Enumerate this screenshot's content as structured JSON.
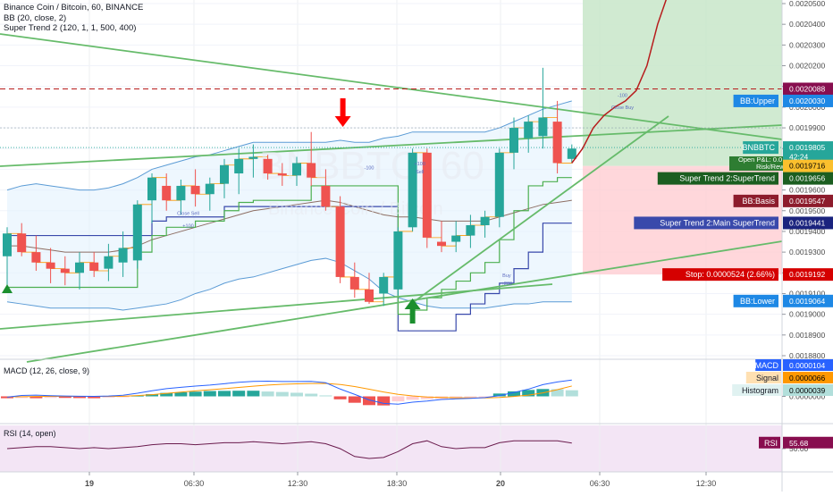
{
  "header": {
    "title": "Binance Coin / Bitcoin, 60, BINANCE",
    "bb": "BB (20, close, 2)",
    "supertrend": "Super Trend 2 (120, 1, 1, 500, 400)"
  },
  "watermark": {
    "symbol": "BNBBTC, 60",
    "name": "Binance Coin / Bitcoin"
  },
  "colors": {
    "up": "#26a69a",
    "down": "#ef5350",
    "bb": "#5b9bd5",
    "basis": "#8d6e63",
    "st_fast": "#4caf50",
    "st_slow": "#3949ab",
    "trend_line": "#66bb6a",
    "target": "#b71c1c",
    "macd": "#2962ff",
    "signal": "#ff9800",
    "rsi": "#7e57c2"
  },
  "price_axis": {
    "ticks": [
      "0.0020500",
      "0.0020400",
      "0.0020300",
      "0.0020200",
      "0.0020100",
      "0.0020000",
      "0.0019900",
      "0.0019800",
      "0.0019700",
      "0.0019600",
      "0.0019500",
      "0.0019400",
      "0.0019300",
      "0.0019200",
      "0.0019100",
      "0.0019000",
      "0.0018900",
      "0.0018800"
    ]
  },
  "macd_axis": {
    "ticks": [
      "0.0000000"
    ]
  },
  "rsi_axis": {
    "ticks": [
      "50.00"
    ]
  },
  "price_labels": [
    {
      "text": "0.0020088",
      "bg": "#880e4f",
      "fg": "#ffffff",
      "price": 0.0020088
    },
    {
      "text": "0.0020030",
      "bg": "#1e88e5",
      "fg": "#ffffff",
      "price": 0.002003
    },
    {
      "text": "0.0019805",
      "bg": "#26a69a",
      "fg": "#ffffff",
      "price": 0.0019805
    },
    {
      "text": "42:24",
      "bg": "#26a69a",
      "fg": "#ffffff",
      "price": 0.001976
    },
    {
      "text": "0.0019716",
      "bg": "#fbc02d",
      "fg": "#000000",
      "price": 0.0019716
    },
    {
      "text": "0.0019656",
      "bg": "#1b5e20",
      "fg": "#ffffff",
      "price": 0.0019656
    },
    {
      "text": "0.0019547",
      "bg": "#8d1c2c",
      "fg": "#ffffff",
      "price": 0.0019547
    },
    {
      "text": "0.0019441",
      "bg": "#1a237e",
      "fg": "#ffffff",
      "price": 0.0019441
    },
    {
      "text": "0.0019192",
      "bg": "#d50000",
      "fg": "#ffffff",
      "price": 0.0019192
    },
    {
      "text": "0.0019064",
      "bg": "#1e88e5",
      "fg": "#ffffff",
      "price": 0.0019064
    }
  ],
  "line_tags": [
    {
      "text": "BB:Upper",
      "bg": "#1e88e5",
      "price": 0.002003
    },
    {
      "text": "BNBBTC",
      "bg": "#26a69a",
      "price": 0.0019805
    },
    {
      "text": "Super Trend 2:SuperTrend",
      "bg": "#1b5e20",
      "price": 0.0019656
    },
    {
      "text": "BB:Basis",
      "bg": "#8d1c2c",
      "price": 0.0019547
    },
    {
      "text": "Super Trend 2:Main SuperTrend",
      "bg": "#3949ab",
      "price": 0.0019441
    },
    {
      "text": "Stop: 0.0000524 (2.66%)",
      "bg": "#d50000",
      "price": 0.0019192
    },
    {
      "text": "BB:Lower",
      "bg": "#1e88e5",
      "price": 0.0019064
    }
  ],
  "position_box": {
    "open_pnl": "Open P&L: 0.0",
    "risk_reward": "Risk/Rew"
  },
  "macd_labels": [
    {
      "text": "MACD",
      "value": "0.0000104",
      "tag_bg": "#2962ff",
      "val_bg": "#2962ff",
      "val_fg": "#ffffff"
    },
    {
      "text": "Signal",
      "value": "0.0000066",
      "tag_bg": "#ffe0b2",
      "val_bg": "#ff9800",
      "val_fg": "#000000"
    },
    {
      "text": "Histogram",
      "value": "0.0000039",
      "tag_bg": "#e0f2f1",
      "val_bg": "#b2dfdb",
      "val_fg": "#000000"
    }
  ],
  "macd_title": "MACD (12, 26, close, 9)",
  "rsi_title": "RSI (14, open)",
  "rsi_label": {
    "text": "RSI",
    "value": "55.68"
  },
  "time_axis": {
    "labels": [
      {
        "text": "19",
        "bold": true
      },
      {
        "text": "06:30",
        "bold": false
      },
      {
        "text": "12:30",
        "bold": false
      },
      {
        "text": "18:30",
        "bold": false
      },
      {
        "text": "20",
        "bold": true
      },
      {
        "text": "06:30",
        "bold": false
      },
      {
        "text": "12:30",
        "bold": false
      }
    ]
  },
  "annotations": [
    {
      "text": "-100",
      "x": 25,
      "y": 0.00197
    },
    {
      "text": "Close Sell",
      "x": 12.5,
      "y": 0.001948
    },
    {
      "text": "+100",
      "x": 12.5,
      "y": 0.001942
    },
    {
      "text": "+100",
      "x": 28.5,
      "y": 0.001972
    },
    {
      "text": "Sell",
      "x": 28.5,
      "y": 0.001968
    },
    {
      "text": "Buy",
      "x": 34.5,
      "y": 0.001918
    },
    {
      "text": "+200",
      "x": 34.5,
      "y": 0.001914
    },
    {
      "text": "-100",
      "x": 42.5,
      "y": 0.002005
    },
    {
      "text": "Close Buy",
      "x": 42.5,
      "y": 0.001999
    }
  ],
  "chart_data": {
    "type": "candlestick",
    "symbol": "BNBBTC",
    "interval": "60",
    "exchange": "BINANCE",
    "ylim": [
      0.00187,
      0.002052
    ],
    "candles": [
      {
        "o": 0.001928,
        "h": 0.001942,
        "l": 0.001913,
        "c": 0.001939
      },
      {
        "o": 0.001939,
        "h": 0.001944,
        "l": 0.001928,
        "c": 0.00193
      },
      {
        "o": 0.00193,
        "h": 0.001938,
        "l": 0.001921,
        "c": 0.001925
      },
      {
        "o": 0.001925,
        "h": 0.001932,
        "l": 0.001915,
        "c": 0.001922
      },
      {
        "o": 0.001922,
        "h": 0.001928,
        "l": 0.001914,
        "c": 0.00192
      },
      {
        "o": 0.00192,
        "h": 0.00193,
        "l": 0.001912,
        "c": 0.001925
      },
      {
        "o": 0.001925,
        "h": 0.00193,
        "l": 0.001918,
        "c": 0.001921
      },
      {
        "o": 0.001922,
        "h": 0.001934,
        "l": 0.001916,
        "c": 0.001928
      },
      {
        "o": 0.001925,
        "h": 0.00194,
        "l": 0.001918,
        "c": 0.001932
      },
      {
        "o": 0.001926,
        "h": 0.001955,
        "l": 0.001922,
        "c": 0.001953
      },
      {
        "o": 0.001955,
        "h": 0.001968,
        "l": 0.001944,
        "c": 0.001966
      },
      {
        "o": 0.001962,
        "h": 0.001968,
        "l": 0.00195,
        "c": 0.001955
      },
      {
        "o": 0.001955,
        "h": 0.001965,
        "l": 0.001948,
        "c": 0.001962
      },
      {
        "o": 0.001962,
        "h": 0.00197,
        "l": 0.001952,
        "c": 0.001958
      },
      {
        "o": 0.001958,
        "h": 0.001966,
        "l": 0.00195,
        "c": 0.001963
      },
      {
        "o": 0.001963,
        "h": 0.001975,
        "l": 0.001956,
        "c": 0.001972
      },
      {
        "o": 0.001968,
        "h": 0.00198,
        "l": 0.001958,
        "c": 0.001975
      },
      {
        "o": 0.001975,
        "h": 0.001982,
        "l": 0.001966,
        "c": 0.001976
      },
      {
        "o": 0.001975,
        "h": 0.001977,
        "l": 0.001965,
        "c": 0.001968
      },
      {
        "o": 0.001968,
        "h": 0.001973,
        "l": 0.001962,
        "c": 0.001967
      },
      {
        "o": 0.001967,
        "h": 0.001976,
        "l": 0.001962,
        "c": 0.001973
      },
      {
        "o": 0.001973,
        "h": 0.001988,
        "l": 0.001962,
        "c": 0.001966
      },
      {
        "o": 0.001962,
        "h": 0.00197,
        "l": 0.00195,
        "c": 0.001952
      },
      {
        "o": 0.001952,
        "h": 0.001957,
        "l": 0.001915,
        "c": 0.001918
      },
      {
        "o": 0.001918,
        "h": 0.001925,
        "l": 0.001908,
        "c": 0.001912
      },
      {
        "o": 0.001912,
        "h": 0.00192,
        "l": 0.001905,
        "c": 0.001906
      },
      {
        "o": 0.00191,
        "h": 0.00192,
        "l": 0.001904,
        "c": 0.001918
      },
      {
        "o": 0.001912,
        "h": 0.001942,
        "l": 0.001909,
        "c": 0.00194
      },
      {
        "o": 0.001942,
        "h": 0.00198,
        "l": 0.00194,
        "c": 0.001978
      },
      {
        "o": 0.001978,
        "h": 0.00198,
        "l": 0.001932,
        "c": 0.001937
      },
      {
        "o": 0.001935,
        "h": 0.001945,
        "l": 0.00193,
        "c": 0.001933
      },
      {
        "o": 0.001935,
        "h": 0.001945,
        "l": 0.00193,
        "c": 0.001938
      },
      {
        "o": 0.001938,
        "h": 0.001948,
        "l": 0.001932,
        "c": 0.001943
      },
      {
        "o": 0.001943,
        "h": 0.00195,
        "l": 0.001937,
        "c": 0.001947
      },
      {
        "o": 0.001947,
        "h": 0.00198,
        "l": 0.001942,
        "c": 0.001978
      },
      {
        "o": 0.001978,
        "h": 0.001995,
        "l": 0.00197,
        "c": 0.00199
      },
      {
        "o": 0.001985,
        "h": 0.001996,
        "l": 0.001978,
        "c": 0.001993
      },
      {
        "o": 0.001986,
        "h": 0.002019,
        "l": 0.00198,
        "c": 0.001995
      },
      {
        "o": 0.001993,
        "h": 0.002003,
        "l": 0.001968,
        "c": 0.001973
      },
      {
        "o": 0.001975,
        "h": 0.001982,
        "l": 0.001973,
        "c": 0.00198
      }
    ],
    "bb_upper": [
      0.00196,
      0.001962,
      0.001963,
      0.001962,
      0.001961,
      0.00196,
      0.00196,
      0.001961,
      0.001963,
      0.001966,
      0.00197,
      0.001972,
      0.001974,
      0.001976,
      0.001977,
      0.001979,
      0.001981,
      0.001983,
      0.001983,
      0.001983,
      0.001983,
      0.001983,
      0.001983,
      0.001984,
      0.001983,
      0.001983,
      0.001985,
      0.001986,
      0.001988,
      0.001988,
      0.001988,
      0.001988,
      0.001988,
      0.001988,
      0.00199,
      0.001993,
      0.001996,
      0.001999,
      0.002001,
      0.002003
    ],
    "bb_basis": [
      0.001933,
      0.001933,
      0.001932,
      0.001931,
      0.00193,
      0.00193,
      0.00193,
      0.00193,
      0.001931,
      0.001933,
      0.001936,
      0.001938,
      0.00194,
      0.001942,
      0.001944,
      0.001946,
      0.001948,
      0.00195,
      0.001951,
      0.001952,
      0.001953,
      0.001954,
      0.001955,
      0.001954,
      0.001952,
      0.00195,
      0.001948,
      0.001947,
      0.001947,
      0.001946,
      0.001945,
      0.001945,
      0.001945,
      0.001945,
      0.001947,
      0.001949,
      0.001951,
      0.001953,
      0.001954,
      0.001955
    ],
    "bb_lower": [
      0.001906,
      0.001905,
      0.001904,
      0.001903,
      0.001903,
      0.001903,
      0.001903,
      0.001903,
      0.001902,
      0.001903,
      0.001904,
      0.001905,
      0.001907,
      0.00191,
      0.001912,
      0.001915,
      0.001917,
      0.001918,
      0.00192,
      0.001922,
      0.001924,
      0.001926,
      0.001927,
      0.001925,
      0.001921,
      0.001917,
      0.001911,
      0.001908,
      0.001906,
      0.001904,
      0.001903,
      0.001903,
      0.001903,
      0.001903,
      0.001904,
      0.001905,
      0.001905,
      0.001906,
      0.001906,
      0.001906
    ],
    "st_fast": [
      0.001913,
      0.001913,
      0.001913,
      0.001913,
      0.001913,
      0.001913,
      0.001913,
      0.001913,
      0.001913,
      0.00193,
      0.001938,
      0.001942,
      0.001942,
      0.001945,
      0.001945,
      0.00195,
      0.001954,
      0.001955,
      0.001955,
      0.001955,
      0.001955,
      0.001962,
      0.001962,
      0.001962,
      0.001962,
      0.001962,
      0.001962,
      0.0019,
      0.001902,
      0.001908,
      0.001912,
      0.001916,
      0.00192,
      0.001925,
      0.001936,
      0.00195,
      0.001962,
      0.001964,
      0.001966,
      0.001966
    ],
    "st_slow": [
      0.001938,
      0.001938,
      0.001938,
      0.001938,
      0.001938,
      0.001938,
      0.001938,
      0.001938,
      0.001938,
      0.001938,
      0.001945,
      0.001947,
      0.001947,
      0.001947,
      0.001947,
      0.001952,
      0.001952,
      0.001952,
      0.001952,
      0.001952,
      0.001952,
      0.001952,
      0.001952,
      0.001952,
      0.001952,
      0.001952,
      0.001952,
      0.001892,
      0.001892,
      0.001892,
      0.001892,
      0.0019,
      0.001905,
      0.00191,
      0.001915,
      0.001922,
      0.00193,
      0.001944,
      0.001944,
      0.001944
    ],
    "resistance": [
      0.001972,
      0.001962
    ],
    "target_path": [
      0.001973,
      0.00198,
      0.00199,
      0.001996,
      0.002,
      0.002003,
      0.002008,
      0.00202,
      0.00204,
      0.002055
    ],
    "levels": {
      "target": 0.0020088,
      "entry": 0.0019716,
      "stop": 0.0019192,
      "bb_upper": 0.002003,
      "bb_basis": 0.0019547,
      "bb_lower": 0.0019064,
      "last": 0.0019805
    },
    "macd": {
      "ylim": [
        -1.4e-05,
        1.8e-05
      ],
      "macd": [
        -5e-07,
        6e-07,
        8e-07,
        4e-07,
        2e-07,
        1e-07,
        0.0,
        2e-07,
        7e-07,
        2e-06,
        3.6e-06,
        4.9e-06,
        5.8e-06,
        6.6e-06,
        7.2e-06,
        8.1e-06,
        9e-06,
        9.6e-06,
        9.7e-06,
        9.5e-06,
        9.5e-06,
        9.6e-06,
        8.7e-06,
        4.7e-06,
        1.3e-06,
        -2.3e-06,
        -4.5e-06,
        -5e-06,
        -3.7e-06,
        -3e-06,
        -2e-06,
        -1.6e-06,
        -1.3e-06,
        -8e-07,
        4e-07,
        2.5e-06,
        4.6e-06,
        7.5e-06,
        9.2e-06,
        1.04e-05
      ],
      "signal": [
        -3e-07,
        -2e-07,
        -1e-07,
        0.0,
        0.0,
        0.0,
        0.0,
        0.0,
        1e-07,
        5e-07,
        1.1e-06,
        1.9e-06,
        2.7e-06,
        3.5e-06,
        4.2e-06,
        4.9e-06,
        5.7e-06,
        6.5e-06,
        7.2e-06,
        7.7e-06,
        8e-06,
        8.2e-06,
        8.3e-06,
        7.6e-06,
        6.3e-06,
        4.6e-06,
        2.8e-06,
        1.3e-06,
        3e-07,
        -4e-07,
        -7e-07,
        -9e-07,
        -1e-06,
        -1e-06,
        -7e-07,
        -1e-07,
        8e-07,
        2.2e-06,
        4.3e-06,
        6.6e-06
      ],
      "histogram": [
        -1.2e-06,
        -1.1e-06,
        -1.2e-06,
        -1e-06,
        -1e-06,
        -1.1e-06,
        -1.2e-06,
        -8e-07,
        -4e-07,
        5e-07,
        1.4e-06,
        2.2e-06,
        2.6e-06,
        3e-06,
        3.4e-06,
        3.5e-06,
        3.6e-06,
        3.6e-06,
        3.1e-06,
        2.8e-06,
        2.3e-06,
        1.7e-06,
        6e-07,
        -1.9e-06,
        -4.1e-06,
        -5.6e-06,
        -5.8e-06,
        -3.2e-06,
        -2.2e-06,
        -1.8e-06,
        -1.6e-06,
        -1.4e-06,
        -8e-07,
        -2e-07,
        1.8e-06,
        3.2e-06,
        4.1e-06,
        4.7e-06,
        4.6e-06,
        3.9e-06
      ]
    },
    "rsi": {
      "ylim": [
        30,
        70
      ],
      "values": [
        50,
        51,
        52,
        52,
        51,
        50,
        51,
        50,
        51,
        52,
        54,
        55,
        55,
        54,
        55,
        56,
        56,
        57,
        56,
        55,
        56,
        57,
        55,
        50,
        42,
        40,
        41,
        47,
        55,
        58,
        52,
        50,
        51,
        51,
        56,
        58,
        58,
        58,
        58,
        55.68
      ]
    }
  }
}
